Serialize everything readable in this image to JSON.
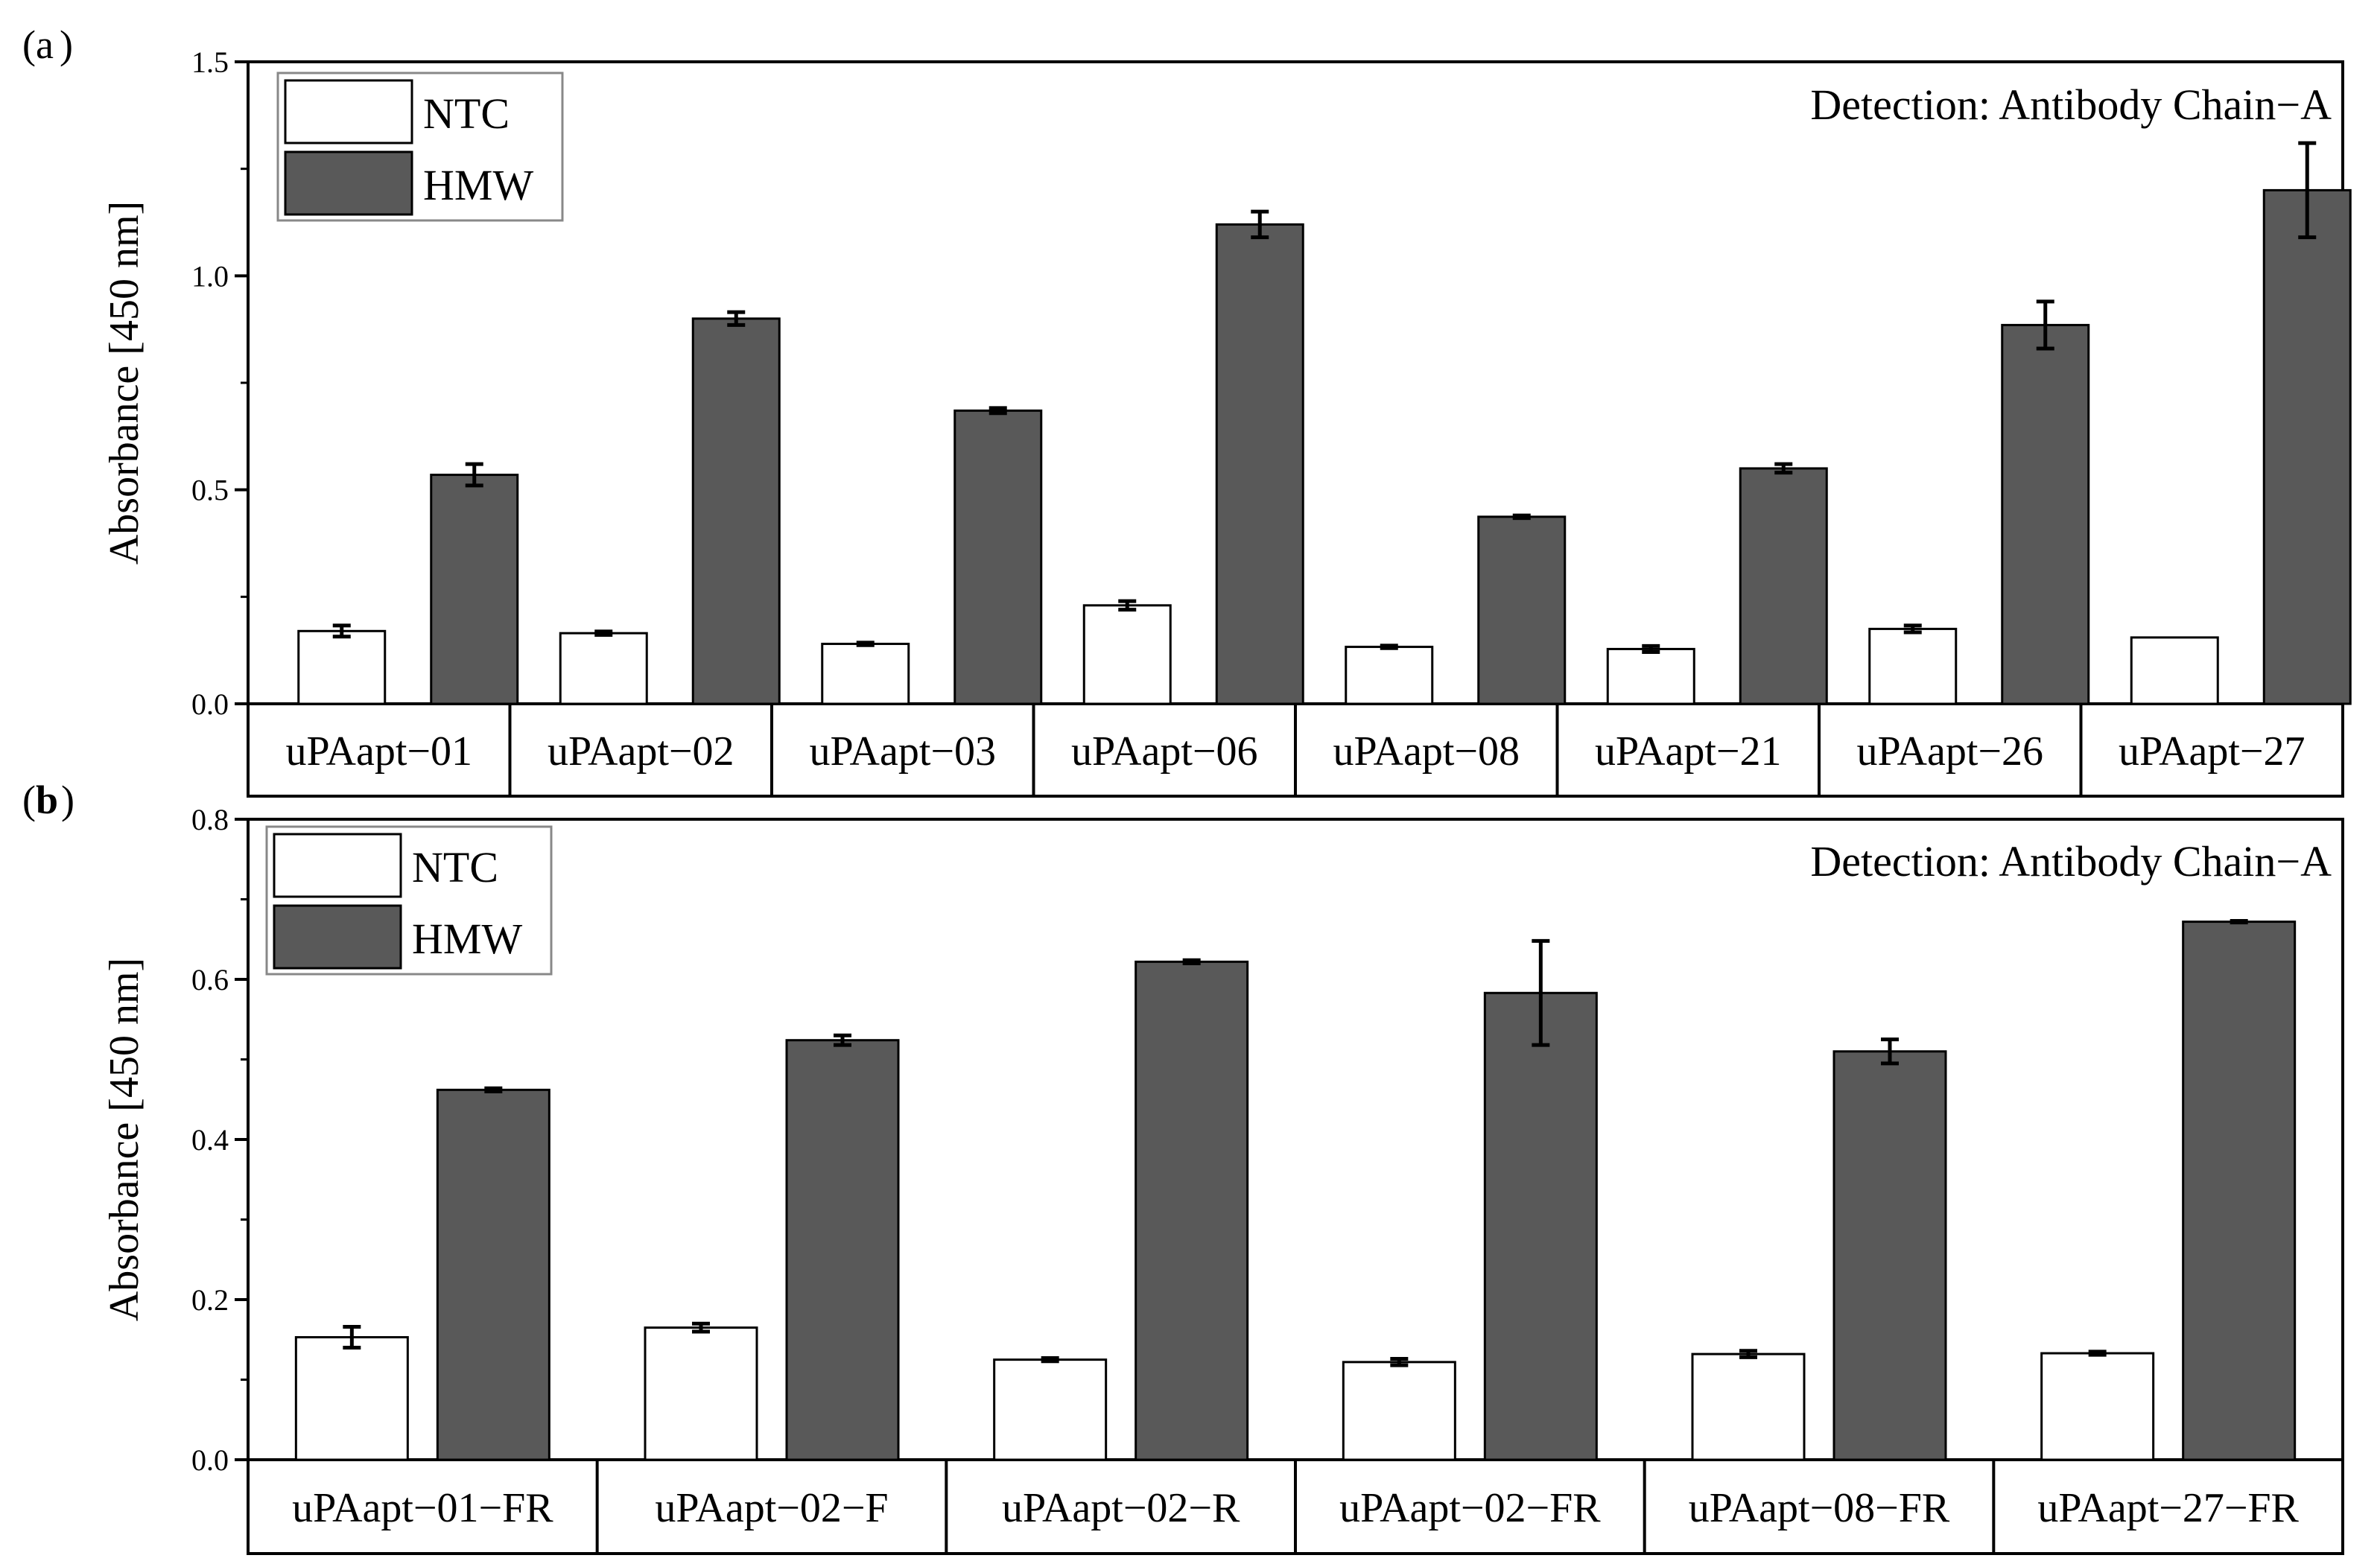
{
  "chart_data": [
    {
      "panel": "a",
      "panel_label": "a",
      "type": "bar",
      "title": "",
      "annotation": "Detection: Antibody Chain−A",
      "ylabel": "Absorbance [450 nm]",
      "xlabel": "",
      "ylim": [
        0,
        1.5
      ],
      "yticks": [
        "0.0",
        "0.5",
        "1.0",
        "1.5"
      ],
      "yminor": [
        0.25,
        0.75,
        1.25
      ],
      "legend_position": "top-left",
      "categories": [
        "uPAapt−01",
        "uPAapt−02",
        "uPAapt−03",
        "uPAapt−06",
        "uPAapt−08",
        "uPAapt−21",
        "uPAapt−26",
        "uPAapt−27"
      ],
      "series": [
        {
          "name": "NTC",
          "color": "#ffffff",
          "values": [
            0.17,
            0.165,
            0.14,
            0.23,
            0.133,
            0.128,
            0.175,
            0.155
          ],
          "errors": [
            0.013,
            0.004,
            0.003,
            0.01,
            0.003,
            0.007,
            0.008,
            0
          ]
        },
        {
          "name": "HMW",
          "color": "#595959",
          "values": [
            0.535,
            0.9,
            0.685,
            1.12,
            0.437,
            0.55,
            0.885,
            1.2
          ],
          "errors": [
            0.025,
            0.015,
            0.006,
            0.03,
            0.003,
            0.01,
            0.055,
            0.11
          ]
        }
      ]
    },
    {
      "panel": "b",
      "panel_label": "b",
      "type": "bar",
      "title": "",
      "annotation": "Detection: Antibody Chain−A",
      "ylabel": "Absorbance [450 nm]",
      "xlabel": "",
      "ylim": [
        0,
        0.8
      ],
      "yticks": [
        "0.0",
        "0.2",
        "0.4",
        "0.6",
        "0.8"
      ],
      "yminor": [
        0.1,
        0.3,
        0.5,
        0.7
      ],
      "legend_position": "top-left",
      "categories": [
        "uPAapt−01−FR",
        "uPAapt−02−F",
        "uPAapt−02−R",
        "uPAapt−02−FR",
        "uPAapt−08−FR",
        "uPAapt−27−FR"
      ],
      "series": [
        {
          "name": "NTC",
          "color": "#ffffff",
          "values": [
            0.153,
            0.165,
            0.125,
            0.122,
            0.132,
            0.133
          ],
          "errors": [
            0.013,
            0.005,
            0.002,
            0.004,
            0.004,
            0.002
          ]
        },
        {
          "name": "HMW",
          "color": "#595959",
          "values": [
            0.462,
            0.524,
            0.622,
            0.583,
            0.51,
            0.672
          ],
          "errors": [
            0.002,
            0.006,
            0.002,
            0.065,
            0.015,
            0.001
          ]
        }
      ]
    }
  ]
}
